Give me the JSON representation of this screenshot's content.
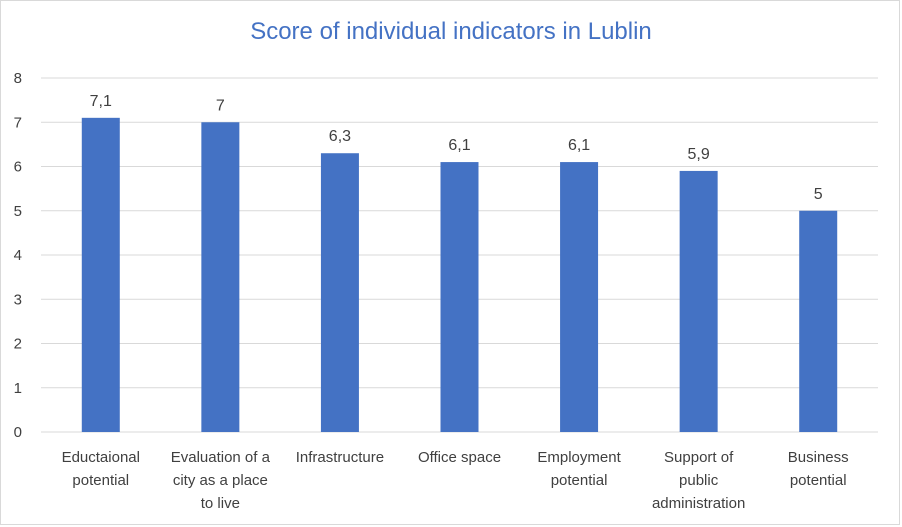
{
  "chart_data": {
    "type": "bar",
    "title": "Score of individual indicators in Lublin",
    "categories": [
      [
        "Eductaional",
        "potential"
      ],
      [
        "Evaluation of a",
        "city as a place",
        "to live"
      ],
      [
        "Infrastructure"
      ],
      [
        "Office space"
      ],
      [
        "Employment",
        "potential"
      ],
      [
        "Support of",
        "public",
        "administration"
      ],
      [
        "Business",
        "potential"
      ]
    ],
    "values": [
      7.1,
      7,
      6.3,
      6.1,
      6.1,
      5.9,
      5
    ],
    "data_labels": [
      "7,1",
      "7",
      "6,3",
      "6,1",
      "6,1",
      "5,9",
      "5"
    ],
    "y_ticks": [
      "0",
      "1",
      "2",
      "3",
      "4",
      "5",
      "6",
      "7",
      "8"
    ],
    "ylim": [
      0,
      8
    ],
    "grid": true,
    "bar_color": "#4472c4",
    "grid_color": "#d9d9d9"
  }
}
